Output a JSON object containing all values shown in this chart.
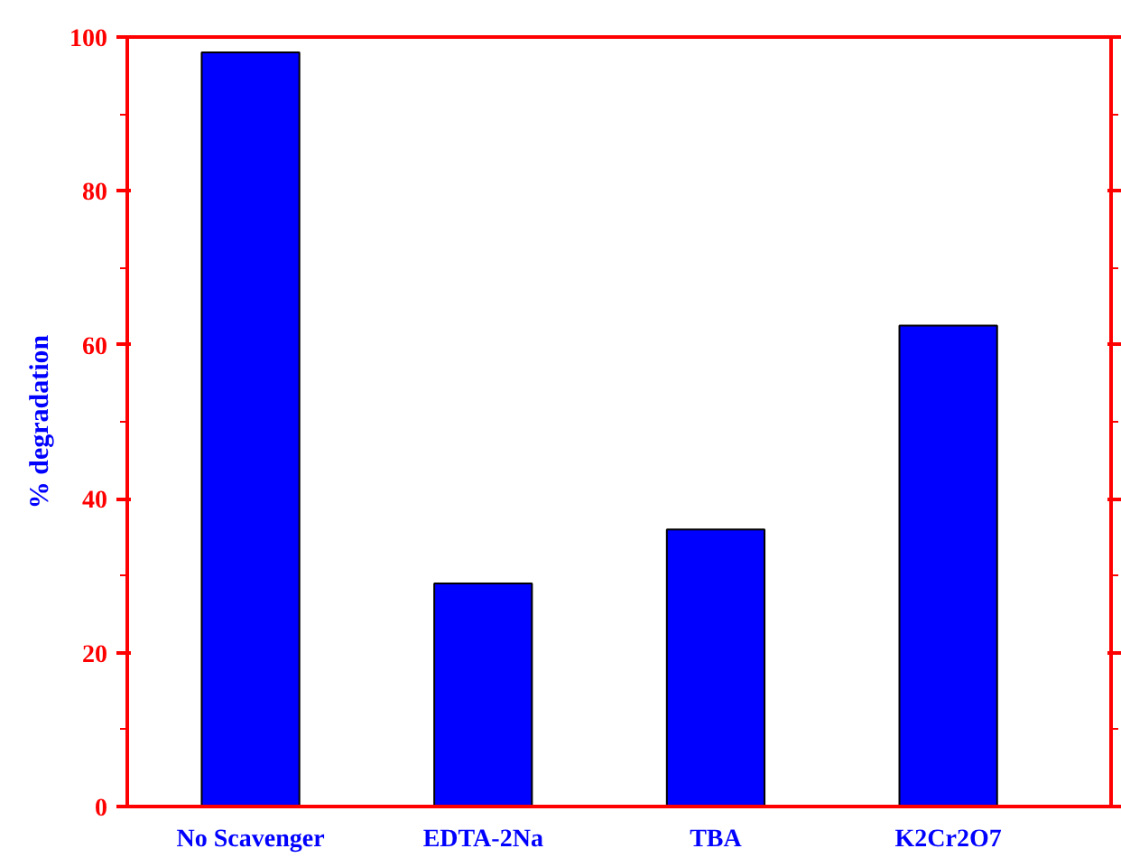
{
  "chart_data": {
    "type": "bar",
    "ylabel": "% degradation",
    "categories": [
      "No Scavenger",
      "EDTA-2Na",
      "TBA",
      "K2Cr2O7"
    ],
    "values": [
      98,
      29,
      36,
      62.5
    ],
    "color": "#0000ff",
    "ylim": [
      0,
      100
    ],
    "yticks": [
      0,
      20,
      40,
      60,
      80,
      100
    ],
    "grid": false
  }
}
